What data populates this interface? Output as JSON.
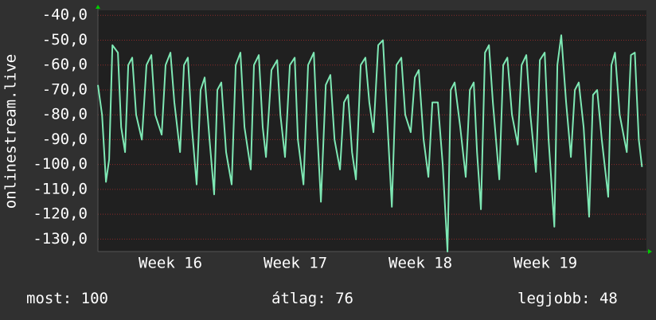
{
  "chart_data": {
    "type": "line",
    "ylabel": "onlinestream.live",
    "color": "#7ee8b4",
    "x": [
      -0.56,
      -0.33,
      -0.11,
      0.07,
      0.25,
      0.56,
      0.74,
      0.96,
      1.14,
      1.36,
      1.58,
      1.9,
      2.16,
      2.43,
      2.65,
      3.01,
      3.23,
      3.5,
      3.72,
      4.04,
      4.26,
      4.48,
      4.7,
      4.97,
      5.19,
      5.42,
      5.69,
      5.95,
      6.13,
      6.35,
      6.62,
      6.93,
      7.16,
      7.42,
      7.65,
      8.0,
      8.18,
      8.45,
      8.67,
      8.85,
      9.16,
      9.48,
      9.66,
      9.92,
      10.19,
      10.46,
      10.64,
      10.95,
      11.21,
      11.53,
      11.71,
      11.93,
      12.2,
      12.46,
      12.69,
      13.0,
      13.22,
      13.45,
      13.67,
      13.89,
      14.16,
      14.42,
      14.64,
      14.87,
      15.14,
      15.4,
      15.63,
      15.9,
      16.16,
      16.43,
      16.65,
      16.96,
      17.19,
      17.41,
      17.68,
      17.95,
      18.17,
      18.48,
      18.75,
      19.02,
      19.2,
      19.42,
      19.73,
      20.04,
      20.27,
      20.49,
      20.67,
      20.89,
      21.12,
      21.34,
      21.56,
      21.92,
      22.14,
      22.37,
      22.63,
      22.95,
      23.17,
      23.43,
      23.66,
      23.97,
      24.19,
      24.46,
      24.68,
      25.0,
      25.17,
      25.39,
      25.66,
      25.93,
      26.15,
      26.37,
      26.64,
      26.95,
      27.17,
      27.4,
      27.66,
      28.02,
      28.2,
      28.4,
      28.66,
      29.06,
      29.29,
      29.51,
      29.73,
      29.91
    ],
    "values": [
      -68,
      -80,
      -107,
      -98,
      -52,
      -55,
      -85,
      -95,
      -60,
      -57,
      -80,
      -90,
      -60,
      -56,
      -80,
      -88,
      -60,
      -55,
      -75,
      -95,
      -60,
      -57,
      -85,
      -108,
      -70,
      -65,
      -90,
      -112,
      -70,
      -67,
      -95,
      -108,
      -60,
      -55,
      -85,
      -102,
      -60,
      -56,
      -85,
      -97,
      -62,
      -58,
      -80,
      -97,
      -60,
      -57,
      -90,
      -108,
      -60,
      -55,
      -85,
      -115,
      -68,
      -64,
      -90,
      -102,
      -75,
      -72,
      -95,
      -106,
      -60,
      -57,
      -75,
      -87,
      -52,
      -50,
      -80,
      -117,
      -60,
      -57,
      -80,
      -87,
      -65,
      -62,
      -90,
      -105,
      -75,
      -75,
      -100,
      -135,
      -70,
      -67,
      -85,
      -105,
      -70,
      -67,
      -95,
      -118,
      -55,
      -52,
      -75,
      -106,
      -60,
      -57,
      -80,
      -92,
      -60,
      -56,
      -80,
      -103,
      -58,
      -55,
      -90,
      -125,
      -60,
      -48,
      -75,
      -97,
      -70,
      -67,
      -85,
      -121,
      -72,
      -70,
      -90,
      -113,
      -60,
      -55,
      -80,
      -95,
      -56,
      -55,
      -90,
      -101
    ],
    "xlim": [
      -0.56,
      30.16
    ],
    "xticks": [
      {
        "value": 3.5,
        "label": "Week 16"
      },
      {
        "value": 10.5,
        "label": "Week 17"
      },
      {
        "value": 17.5,
        "label": "Week 18"
      },
      {
        "value": 24.5,
        "label": "Week 19"
      }
    ],
    "ylim": [
      -135,
      -38
    ],
    "yticks": [
      {
        "value": -40,
        "label": "-40,0"
      },
      {
        "value": -50,
        "label": "-50,0"
      },
      {
        "value": -60,
        "label": "-60,0"
      },
      {
        "value": -70,
        "label": "-70,0"
      },
      {
        "value": -80,
        "label": "-80,0"
      },
      {
        "value": -90,
        "label": "-90,0"
      },
      {
        "value": -100,
        "label": "-100,0"
      },
      {
        "value": -110,
        "label": "-110,0"
      },
      {
        "value": -120,
        "label": "-120,0"
      },
      {
        "value": -130,
        "label": "-130,0"
      }
    ],
    "grid": true
  },
  "footer": [
    {
      "label": "most:",
      "value": 100
    },
    {
      "label": "átlag:",
      "value": 76
    },
    {
      "label": "legjobb:",
      "value": 48
    }
  ]
}
